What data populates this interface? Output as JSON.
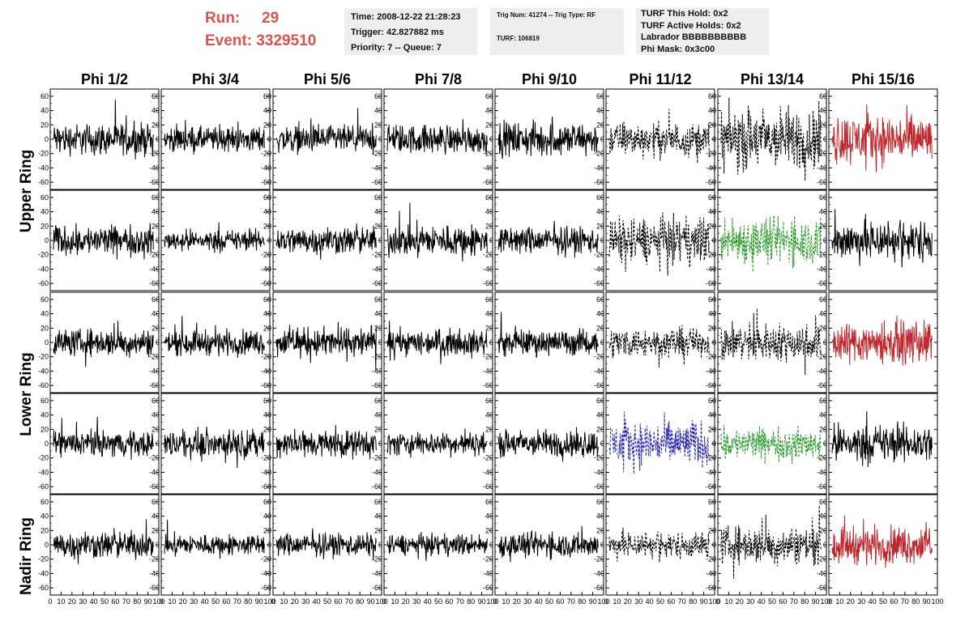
{
  "header": {
    "run_label": "Run:",
    "run_value": "29",
    "event_label": "Event:",
    "event_value": "3329510",
    "accent_color": "#d9534f"
  },
  "info_boxes": {
    "time": "Time: 2008-12-22 21:28:23",
    "trigger": "Trigger: 42.827882 ms",
    "priority": "Priority: 7 -- Queue: 7",
    "trig_num": "Trig Num: 41274 -- Trig Type: RF",
    "turf": "TURF: 106819",
    "turf_hold": "TURF This Hold: 0x2",
    "turf_active": "TURF Active Holds: 0x2",
    "labrador": "Labrador BBBBBBBBBB",
    "phi_mask": "Phi Mask: 0x3c00"
  },
  "chart_data": {
    "type": "line",
    "columns": [
      "Phi 1/2",
      "Phi 3/4",
      "Phi 5/6",
      "Phi 7/8",
      "Phi 9/10",
      "Phi 11/12",
      "Phi 13/14",
      "Phi 15/16"
    ],
    "ring_labels": [
      "Upper Ring",
      "Lower Ring",
      "Nadir Ring"
    ],
    "ylim": [
      -70,
      70
    ],
    "yticks": [
      -60,
      -40,
      -20,
      0,
      20,
      40,
      60
    ],
    "xlim": [
      0,
      100
    ],
    "xticks": [
      0,
      10,
      20,
      30,
      40,
      50,
      60,
      70,
      80,
      90,
      100
    ],
    "colors": {
      "normal": "#000000",
      "red": "#c0272d",
      "green": "#2a9a2a",
      "blue": "#2b2bb0"
    },
    "panels": [
      [
        "normal",
        "normal",
        "normal",
        "normal",
        "normal",
        "dashed",
        "dashed",
        "red"
      ],
      [
        "normal",
        "normal",
        "normal",
        "normal",
        "normal",
        "dashed",
        "green",
        "normal"
      ],
      [
        "normal",
        "normal",
        "normal",
        "normal",
        "normal",
        "dashed",
        "dashed",
        "red"
      ],
      [
        "normal",
        "normal",
        "normal",
        "normal",
        "normal",
        "blue",
        "green",
        "normal"
      ],
      [
        "normal",
        "normal",
        "normal",
        "normal",
        "normal",
        "dashed",
        "dashed",
        "red"
      ]
    ],
    "amplitudes": [
      [
        15,
        12,
        13,
        14,
        16,
        16,
        30,
        24
      ],
      [
        14,
        10,
        13,
        15,
        13,
        22,
        22,
        20
      ],
      [
        13,
        12,
        14,
        12,
        12,
        14,
        18,
        20
      ],
      [
        12,
        13,
        13,
        11,
        13,
        22,
        15,
        18
      ],
      [
        13,
        10,
        11,
        10,
        12,
        13,
        18,
        18
      ]
    ]
  }
}
